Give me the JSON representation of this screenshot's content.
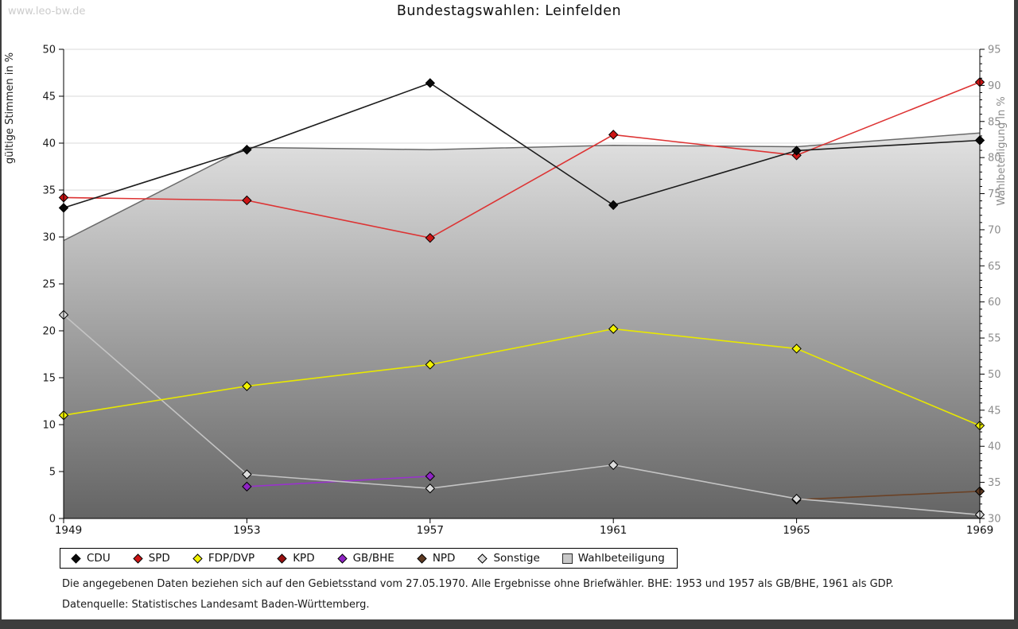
{
  "watermark": "www.leo-bw.de",
  "footnotes": [
    "Die angegebenen Daten beziehen sich auf den Gebietsstand vom 27.05.1970. Alle Ergebnisse ohne Briefwähler. BHE: 1953 und 1957 als GB/BHE, 1961 als GDP.",
    "Datenquelle: Statistisches Landesamt Baden-Württemberg."
  ],
  "chart_data": {
    "type": "line",
    "title": "Bundestagswahlen: Leinfelden",
    "x_categories": [
      "1949",
      "1953",
      "1957",
      "1961",
      "1965",
      "1969"
    ],
    "left_axis": {
      "label": "gültige Stimmen in %",
      "min": 0,
      "max": 50,
      "step": 5
    },
    "right_axis": {
      "label": "Wahlbeteiligung in %",
      "min": 30,
      "max": 95,
      "step": 5,
      "minor_step": 1
    },
    "grid": true,
    "grid_color": "#d9d9d9",
    "legend_position": "bottom",
    "series": [
      {
        "name": "CDU",
        "axis": "left",
        "marker": "diamond",
        "line_color": "#1c1c1c",
        "marker_color": "#0a0a0a",
        "values": [
          33.1,
          39.3,
          46.4,
          33.4,
          39.2,
          40.3
        ]
      },
      {
        "name": "SPD",
        "axis": "left",
        "marker": "diamond",
        "line_color": "#dd3333",
        "marker_color": "#cc1515",
        "values": [
          34.2,
          33.9,
          29.9,
          40.9,
          38.7,
          46.5
        ]
      },
      {
        "name": "FDP/DVP",
        "axis": "left",
        "marker": "diamond",
        "line_color": "#e8e800",
        "marker_color": "#f2f200",
        "values": [
          11.0,
          14.1,
          16.4,
          20.2,
          18.1,
          9.9
        ]
      },
      {
        "name": "KPD",
        "axis": "left",
        "marker": "diamond",
        "line_color": "#991111",
        "marker_color": "#991111",
        "values": [
          null,
          null,
          null,
          null,
          null,
          null
        ]
      },
      {
        "name": "GB/BHE",
        "axis": "left",
        "marker": "diamond",
        "line_color": "#9933cc",
        "marker_color": "#8f24c4",
        "values": [
          null,
          3.4,
          4.5,
          null,
          null,
          null
        ]
      },
      {
        "name": "NPD",
        "axis": "left",
        "marker": "diamond",
        "line_color": "#6b4226",
        "marker_color": "#5e3a22",
        "values": [
          null,
          null,
          null,
          null,
          2.0,
          2.9
        ]
      },
      {
        "name": "Sonstige",
        "axis": "left",
        "marker": "diamond",
        "line_color": "#c4c4c4",
        "marker_color": "#dcdcdc",
        "values": [
          21.7,
          4.7,
          3.2,
          5.7,
          2.1,
          0.4
        ]
      }
    ],
    "turnout_series": {
      "name": "Wahlbeteiligung",
      "axis": "right",
      "marker": "square",
      "line_color": "#6a6a6a",
      "marker_color": "#c8c8c8",
      "area_gradient_top": "#fdfdfd",
      "area_gradient_bottom": "#646464",
      "values": [
        68.5,
        81.4,
        81.1,
        81.7,
        81.5,
        83.4
      ]
    }
  }
}
